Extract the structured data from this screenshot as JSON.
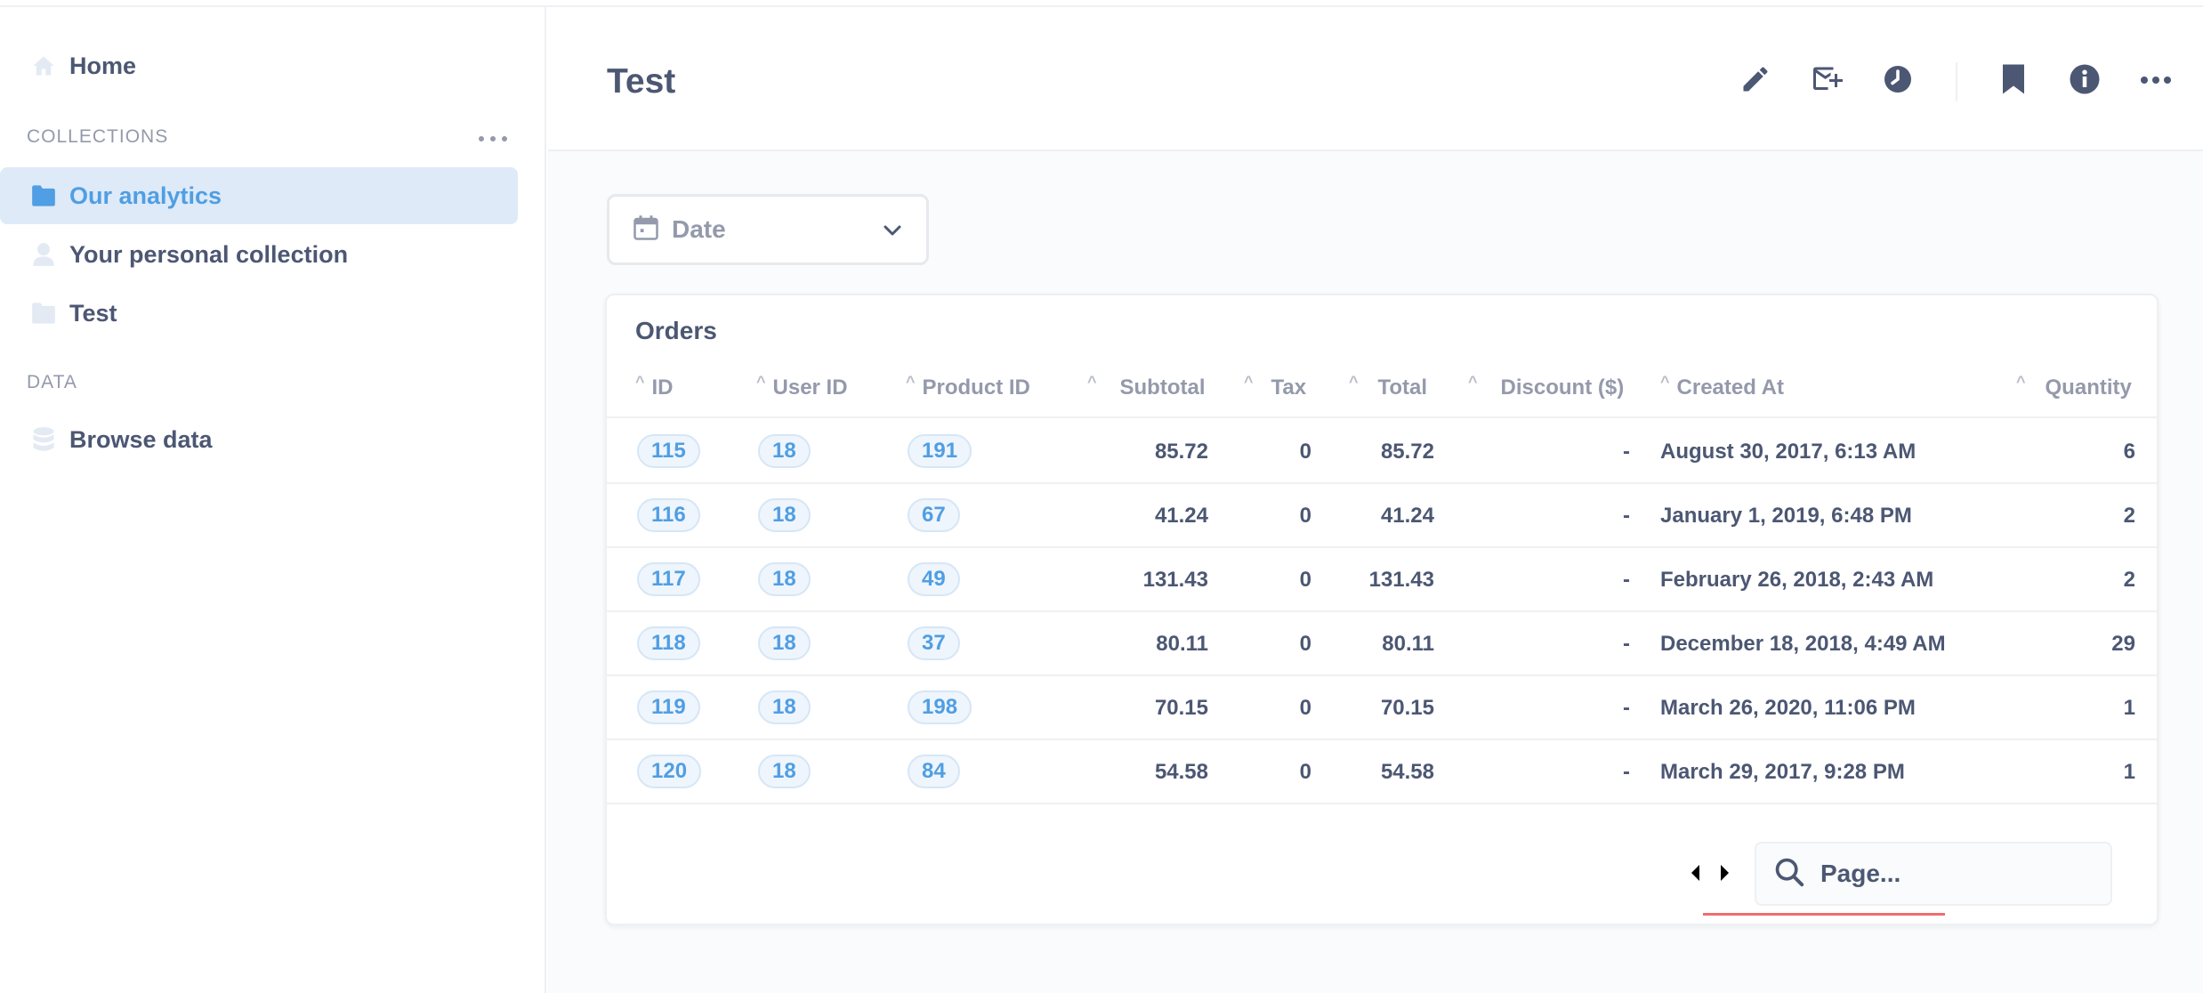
{
  "sidebar": {
    "home_label": "Home",
    "collections_label": "COLLECTIONS",
    "collections": [
      {
        "label": "Our analytics",
        "icon": "folder-icon",
        "active": true
      },
      {
        "label": "Your personal collection",
        "icon": "person-icon",
        "active": false
      },
      {
        "label": "Test",
        "icon": "folder-icon",
        "active": false
      }
    ],
    "data_label": "DATA",
    "browse_label": "Browse data"
  },
  "header": {
    "title": "Test",
    "actions": [
      "pencil-icon",
      "subscription-icon",
      "clock-icon",
      "bookmark-icon",
      "info-icon",
      "more-icon"
    ]
  },
  "filter": {
    "label": "Date"
  },
  "card": {
    "title": "Orders",
    "columns": [
      "ID",
      "User ID",
      "Product ID",
      "Subtotal",
      "Tax",
      "Total",
      "Discount ($)",
      "Created At",
      "Quantity"
    ],
    "rows": [
      {
        "id": "115",
        "user_id": "18",
        "product_id": "191",
        "subtotal": "85.72",
        "tax": "0",
        "total": "85.72",
        "discount": "-",
        "created_at": "August 30, 2017, 6:13 AM",
        "quantity": "6"
      },
      {
        "id": "116",
        "user_id": "18",
        "product_id": "67",
        "subtotal": "41.24",
        "tax": "0",
        "total": "41.24",
        "discount": "-",
        "created_at": "January 1, 2019, 6:48 PM",
        "quantity": "2"
      },
      {
        "id": "117",
        "user_id": "18",
        "product_id": "49",
        "subtotal": "131.43",
        "tax": "0",
        "total": "131.43",
        "discount": "-",
        "created_at": "February 26, 2018, 2:43 AM",
        "quantity": "2"
      },
      {
        "id": "118",
        "user_id": "18",
        "product_id": "37",
        "subtotal": "80.11",
        "tax": "0",
        "total": "80.11",
        "discount": "-",
        "created_at": "December 18, 2018, 4:49 AM",
        "quantity": "29"
      },
      {
        "id": "119",
        "user_id": "18",
        "product_id": "198",
        "subtotal": "70.15",
        "tax": "0",
        "total": "70.15",
        "discount": "-",
        "created_at": "March 26, 2020, 11:06 PM",
        "quantity": "1"
      },
      {
        "id": "120",
        "user_id": "18",
        "product_id": "84",
        "subtotal": "54.58",
        "tax": "0",
        "total": "54.58",
        "discount": "-",
        "created_at": "March 29, 2017, 9:28 PM",
        "quantity": "1"
      }
    ],
    "pager_placeholder": "Page..."
  },
  "colors": {
    "brand": "#509ee3",
    "text": "#4c5773",
    "muted": "#949aab",
    "active_bg": "#deeaf8",
    "accent_red": "#ed6e6e"
  }
}
